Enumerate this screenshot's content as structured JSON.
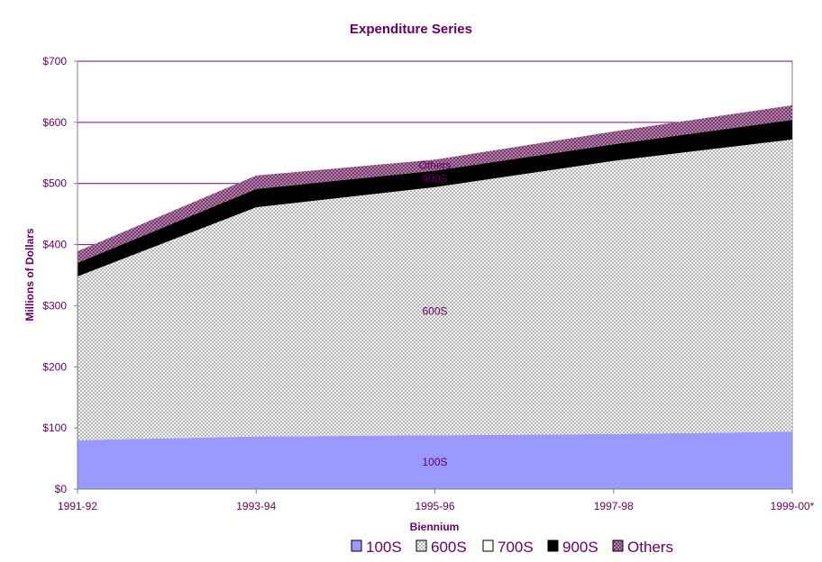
{
  "chart_data": {
    "type": "area",
    "stacked": true,
    "title": "Expenditure Series",
    "xlabel": "Biennium",
    "ylabel": "Millions of Dollars",
    "categories": [
      "1991-92",
      "1993-94",
      "1995-96",
      "1997-98",
      "1999-00*"
    ],
    "ylim": [
      0,
      700
    ],
    "yticks": [
      "$0",
      "$100",
      "$200",
      "$300",
      "$400",
      "$500",
      "$600",
      "$700"
    ],
    "ytick_values": [
      0,
      100,
      200,
      300,
      400,
      500,
      600,
      700
    ],
    "grid": true,
    "legend_position": "bottom",
    "series": [
      {
        "name": "100S",
        "values": [
          80,
          86,
          88,
          90,
          94
        ],
        "color": "#9999ff",
        "pattern": "solid"
      },
      {
        "name": "600S",
        "values": [
          268,
          375,
          406,
          447,
          478
        ],
        "color": "#ffffff",
        "pattern": "crosshatch"
      },
      {
        "name": "700S",
        "values": [
          0,
          0,
          0,
          0,
          0
        ],
        "color": "#ffffff",
        "pattern": "none"
      },
      {
        "name": "900S",
        "values": [
          22,
          30,
          27,
          27,
          32
        ],
        "color": "#000000",
        "pattern": "solid"
      },
      {
        "name": "Others",
        "values": [
          19,
          22,
          18,
          21,
          24
        ],
        "color": "#993366",
        "pattern": "crosshatch"
      }
    ],
    "area_labels": [
      "100S",
      "600S",
      "900S",
      "Others"
    ],
    "colors": {
      "text": "#660066",
      "plot_border": "#808080",
      "gridline": "#800080"
    }
  }
}
